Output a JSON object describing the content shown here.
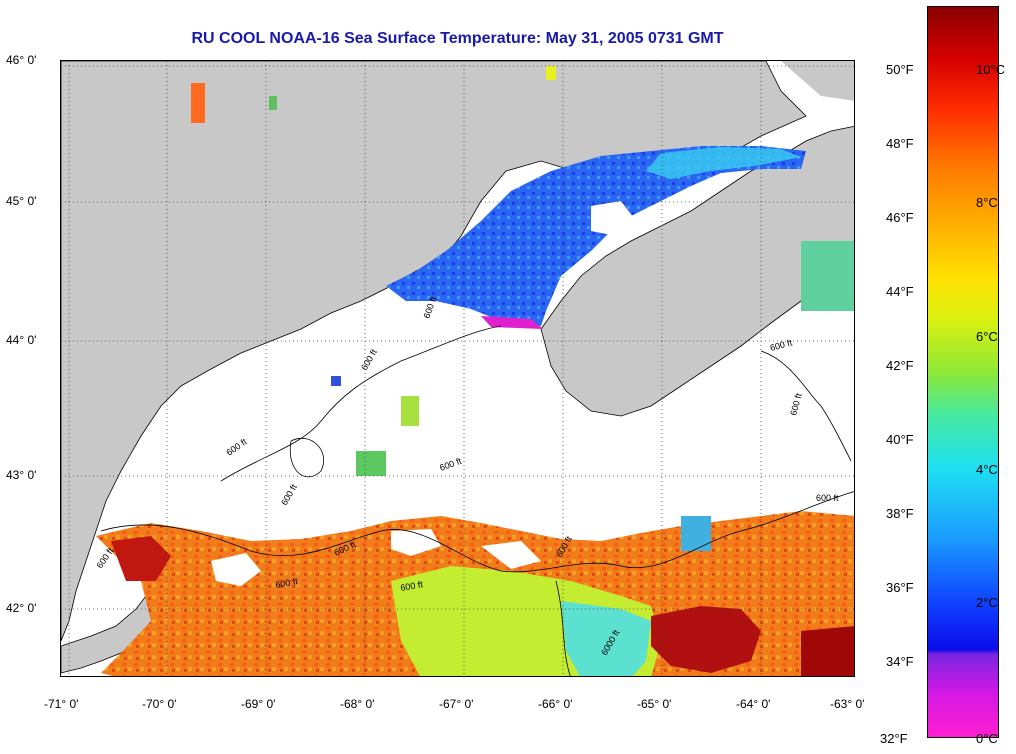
{
  "title": "RU COOL  NOAA-16  Sea Surface Temperature:  May 31, 2005 0731 GMT",
  "lat_labels": [
    "46° 0'",
    "45° 0'",
    "44° 0'",
    "43° 0'",
    "42° 0'"
  ],
  "lon_labels": [
    "-71° 0'",
    "-70° 0'",
    "-69° 0'",
    "-68° 0'",
    "-67° 0'",
    "-66° 0'",
    "-65° 0'",
    "-64° 0'",
    "-63° 0'"
  ],
  "contour_label": "600 ft",
  "contour_label_deep": "6000 ft",
  "colorbar": {
    "fahrenheit_labels": [
      "50°F",
      "48°F",
      "46°F",
      "44°F",
      "42°F",
      "40°F",
      "38°F",
      "36°F",
      "34°F",
      "32°F"
    ],
    "celsius_labels": [
      "10°C",
      "8°C",
      "6°C",
      "4°C",
      "2°C",
      "0°C"
    ]
  },
  "colors": {
    "land": "#c8c8c8",
    "cloud": "#ffffff",
    "title": "#1a1aa8",
    "warm": "#f07818",
    "cold": "#2a60f0",
    "mid": "#a8e840"
  }
}
